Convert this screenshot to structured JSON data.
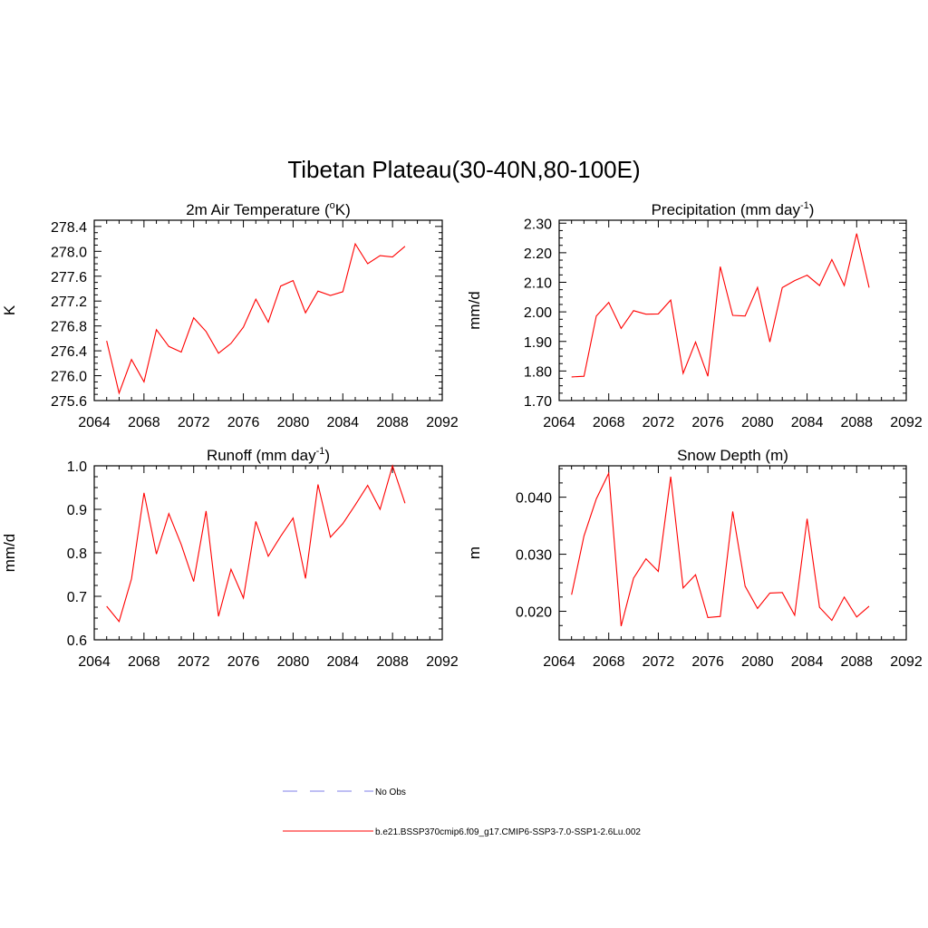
{
  "figure_title": "Tibetan Plateau(30-40N,80-100E)",
  "colors": {
    "model": "#ff0000",
    "obs": "#9999ee",
    "axis": "#000000"
  },
  "legend": [
    {
      "label": "No Obs",
      "style": "dashed",
      "color": "#9999ee"
    },
    {
      "label": "b.e21.BSSP370cmip6.f09_g17.CMIP6-SSP3-7.0-SSP1-2.6Lu.002",
      "style": "solid",
      "color": "#ff0000"
    }
  ],
  "chart_data": [
    {
      "type": "line",
      "title": "2m Air Temperature (",
      "title_sup": "o",
      "title_after": "K)",
      "ylabel": "K",
      "xlim": [
        2064,
        2092
      ],
      "xticks": [
        2064,
        2068,
        2072,
        2076,
        2080,
        2084,
        2088,
        2092
      ],
      "ylim": [
        275.6,
        278.5
      ],
      "yticks": [
        275.6,
        276.0,
        276.4,
        276.8,
        277.2,
        277.6,
        278.0,
        278.4
      ],
      "ytick_decimals": 1,
      "x": [
        2065,
        2066,
        2067,
        2068,
        2069,
        2070,
        2071,
        2072,
        2073,
        2074,
        2075,
        2076,
        2077,
        2078,
        2079,
        2080,
        2081,
        2082,
        2083,
        2084,
        2085,
        2086,
        2087,
        2088,
        2089
      ],
      "series": [
        {
          "color": "#ff0000",
          "values": [
            276.56,
            275.72,
            276.26,
            275.9,
            276.74,
            276.47,
            276.38,
            276.93,
            276.71,
            276.36,
            276.52,
            276.78,
            277.23,
            276.86,
            277.44,
            277.53,
            277.01,
            277.36,
            277.29,
            277.35,
            278.12,
            277.8,
            277.93,
            277.91,
            278.08
          ]
        }
      ]
    },
    {
      "type": "line",
      "title": "Precipitation (mm day",
      "title_sup": "-1",
      "title_after": ")",
      "ylabel": "mm/d",
      "xlim": [
        2064,
        2092
      ],
      "xticks": [
        2064,
        2068,
        2072,
        2076,
        2080,
        2084,
        2088,
        2092
      ],
      "ylim": [
        1.7,
        2.31
      ],
      "yticks": [
        1.7,
        1.8,
        1.9,
        2.0,
        2.1,
        2.2,
        2.3
      ],
      "ytick_decimals": 2,
      "x": [
        2065,
        2066,
        2067,
        2068,
        2069,
        2070,
        2071,
        2072,
        2073,
        2074,
        2075,
        2076,
        2077,
        2078,
        2079,
        2080,
        2081,
        2082,
        2083,
        2084,
        2085,
        2086,
        2087,
        2088,
        2089
      ],
      "series": [
        {
          "color": "#ff0000",
          "values": [
            1.78,
            1.782,
            1.986,
            2.032,
            1.944,
            2.004,
            1.992,
            1.993,
            2.04,
            1.792,
            1.898,
            1.782,
            2.153,
            1.988,
            1.986,
            2.083,
            1.898,
            2.082,
            2.106,
            2.124,
            2.089,
            2.177,
            2.089,
            2.265,
            2.082
          ]
        }
      ]
    },
    {
      "type": "line",
      "title": "Runoff (mm day",
      "title_sup": "-1",
      "title_after": ")",
      "ylabel": "mm/d",
      "xlim": [
        2064,
        2092
      ],
      "xticks": [
        2064,
        2068,
        2072,
        2076,
        2080,
        2084,
        2088,
        2092
      ],
      "ylim": [
        0.6,
        1.0
      ],
      "yticks": [
        0.6,
        0.7,
        0.8,
        0.9,
        1.0
      ],
      "ytick_decimals": 1,
      "x": [
        2065,
        2066,
        2067,
        2068,
        2069,
        2070,
        2071,
        2072,
        2073,
        2074,
        2075,
        2076,
        2077,
        2078,
        2079,
        2080,
        2081,
        2082,
        2083,
        2084,
        2085,
        2086,
        2087,
        2088,
        2089
      ],
      "series": [
        {
          "color": "#ff0000",
          "values": [
            0.677,
            0.642,
            0.74,
            0.938,
            0.797,
            0.89,
            0.819,
            0.734,
            0.896,
            0.654,
            0.762,
            0.696,
            0.872,
            0.792,
            0.838,
            0.88,
            0.741,
            0.957,
            0.836,
            0.867,
            0.91,
            0.955,
            0.9,
            1.0,
            0.914
          ]
        }
      ]
    },
    {
      "type": "line",
      "title": "Snow Depth (m)",
      "title_sup": "",
      "title_after": "",
      "ylabel": "m",
      "xlim": [
        2064,
        2092
      ],
      "xticks": [
        2064,
        2068,
        2072,
        2076,
        2080,
        2084,
        2088,
        2092
      ],
      "ylim": [
        0.015,
        0.0455
      ],
      "yticks": [
        0.02,
        0.03,
        0.04
      ],
      "ytick_decimals": 3,
      "x": [
        2065,
        2066,
        2067,
        2068,
        2069,
        2070,
        2071,
        2072,
        2073,
        2074,
        2075,
        2076,
        2077,
        2078,
        2079,
        2080,
        2081,
        2082,
        2083,
        2084,
        2085,
        2086,
        2087,
        2088,
        2089
      ],
      "series": [
        {
          "color": "#ff0000",
          "values": [
            0.0229,
            0.0332,
            0.0397,
            0.0442,
            0.0174,
            0.0258,
            0.0292,
            0.027,
            0.0436,
            0.0241,
            0.0264,
            0.0189,
            0.0191,
            0.0375,
            0.0244,
            0.0205,
            0.0232,
            0.0233,
            0.0193,
            0.0362,
            0.0207,
            0.0184,
            0.0225,
            0.019,
            0.0209
          ]
        }
      ]
    }
  ]
}
